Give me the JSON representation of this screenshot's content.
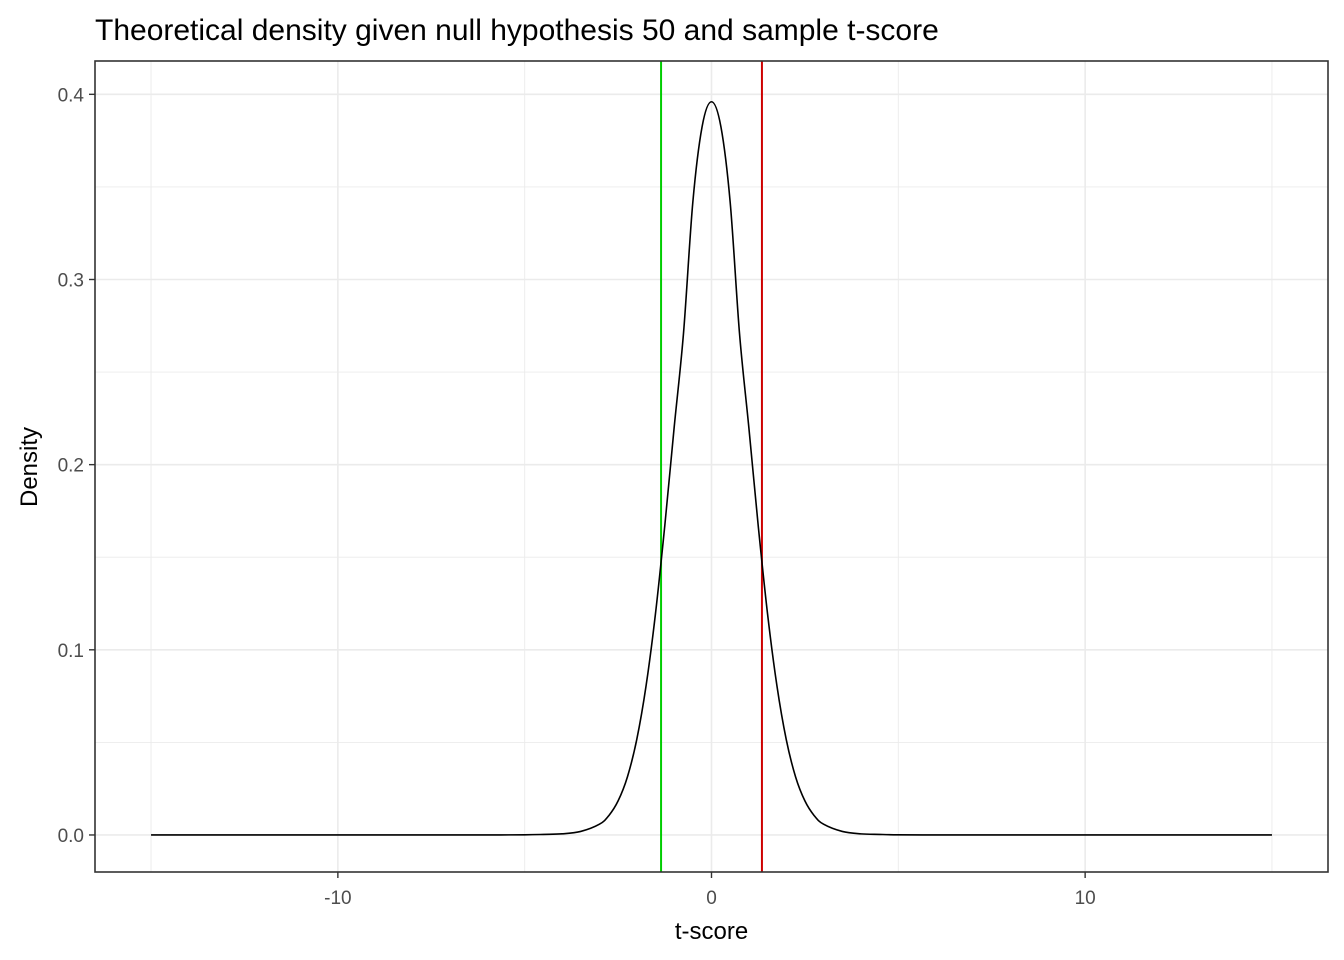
{
  "chart_data": {
    "type": "line",
    "title": "Theoretical density given null hypothesis 50 and sample t-score",
    "xlabel": "t-score",
    "ylabel": "Density",
    "xlim": [
      -16.5,
      16.5
    ],
    "ylim": [
      -0.02,
      0.418
    ],
    "x_ticks": [
      -10,
      0,
      10
    ],
    "x_tick_labels": [
      "-10",
      "0",
      "10"
    ],
    "y_ticks": [
      0.0,
      0.1,
      0.2,
      0.3,
      0.4
    ],
    "y_tick_labels": [
      "0.0",
      "0.1",
      "0.2",
      "0.3",
      "0.4"
    ],
    "x_minor_ticks": [
      -15,
      -5,
      5,
      15
    ],
    "y_minor_ticks": [
      0.05,
      0.15,
      0.25,
      0.35
    ],
    "grid": true,
    "series": [
      {
        "color": "#000000",
        "x": [
          -15,
          -14,
          -13,
          -12,
          -11,
          -10,
          -9,
          -8,
          -7,
          -6,
          -5,
          -4.5,
          -4,
          -3.5,
          -3,
          -2.75,
          -2.5,
          -2.25,
          -2,
          -1.75,
          -1.5,
          -1.25,
          -1,
          -0.75,
          -0.5,
          -0.25,
          0,
          0.25,
          0.5,
          0.75,
          1,
          1.25,
          1.5,
          1.75,
          2,
          2.25,
          2.5,
          2.75,
          3,
          3.5,
          4,
          4.5,
          5,
          6,
          7,
          8,
          9,
          10,
          11,
          12,
          13,
          14,
          15
        ],
        "y": [
          0.0,
          0.0,
          0.0,
          0.0,
          0.0,
          0.0,
          0.0,
          0.0,
          0.0,
          0.0,
          0.0001,
          0.0003,
          0.0006,
          0.0019,
          0.0058,
          0.0104,
          0.0184,
          0.0314,
          0.0516,
          0.0807,
          0.1194,
          0.1671,
          0.22,
          0.2708,
          0.3417,
          0.3827,
          0.396,
          0.3827,
          0.3417,
          0.2708,
          0.22,
          0.1671,
          0.1194,
          0.0807,
          0.0516,
          0.0314,
          0.0184,
          0.0104,
          0.0058,
          0.0019,
          0.0006,
          0.0003,
          0.0001,
          0.0,
          0.0,
          0.0,
          0.0,
          0.0,
          0.0,
          0.0,
          0.0,
          0.0,
          0.0
        ]
      }
    ],
    "vlines": [
      {
        "x": -1.35,
        "color": "#00cd00"
      },
      {
        "x": 1.35,
        "color": "#cd0000"
      }
    ]
  }
}
